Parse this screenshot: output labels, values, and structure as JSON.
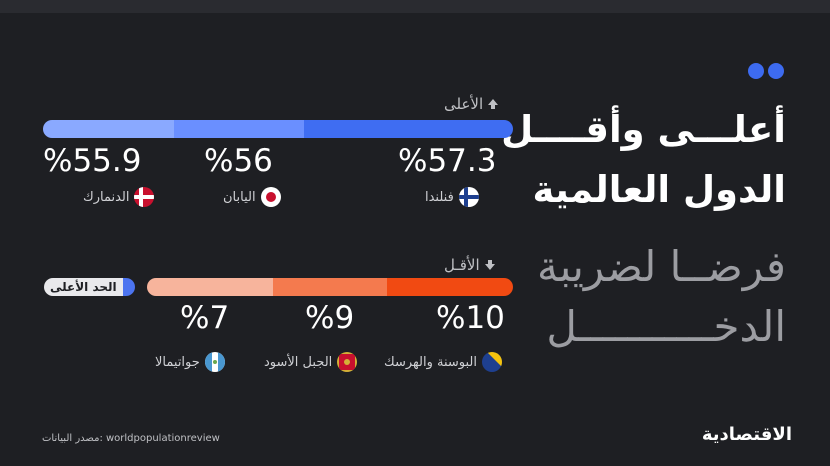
{
  "title": {
    "line1": "أعلـــى وأقــــل",
    "line2": "الدول العالمية",
    "line3": "فرضــا لضريبة",
    "line4": "الدخـــــــــــل"
  },
  "sections": {
    "top_label": "الأعلى",
    "low_label": "الأقـل"
  },
  "reference_tag": "الحد الأعلى",
  "source": "مصدر البيانات: worldpopulationreview",
  "logo": "الاقتصادية",
  "colors": {
    "accent": "#3d6bf0",
    "top_bar": [
      "#8aa9ff",
      "#6a8fff",
      "#3f6df2"
    ],
    "low_bar": [
      "#f7b49c",
      "#f47a4e",
      "#f14a12"
    ]
  },
  "chart_data": [
    {
      "type": "bar",
      "title": "الأعلى",
      "categories": [
        "فنلندا",
        "اليابان",
        "الدنمارك"
      ],
      "values": [
        57.3,
        56,
        55.9
      ],
      "labels": [
        "%57.3",
        "%56",
        "%55.9"
      ],
      "flags": [
        "finland-flag-icon",
        "japan-flag-icon",
        "denmark-flag-icon"
      ]
    },
    {
      "type": "bar",
      "title": "الأقـل",
      "categories": [
        "البوسنة والهرسك",
        "الجبل الأسود",
        "جواتيمالا"
      ],
      "values": [
        10,
        9,
        7
      ],
      "labels": [
        "%10",
        "%9",
        "%7"
      ],
      "flags": [
        "bosnia-flag-icon",
        "montenegro-flag-icon",
        "guatemala-flag-icon"
      ]
    }
  ]
}
